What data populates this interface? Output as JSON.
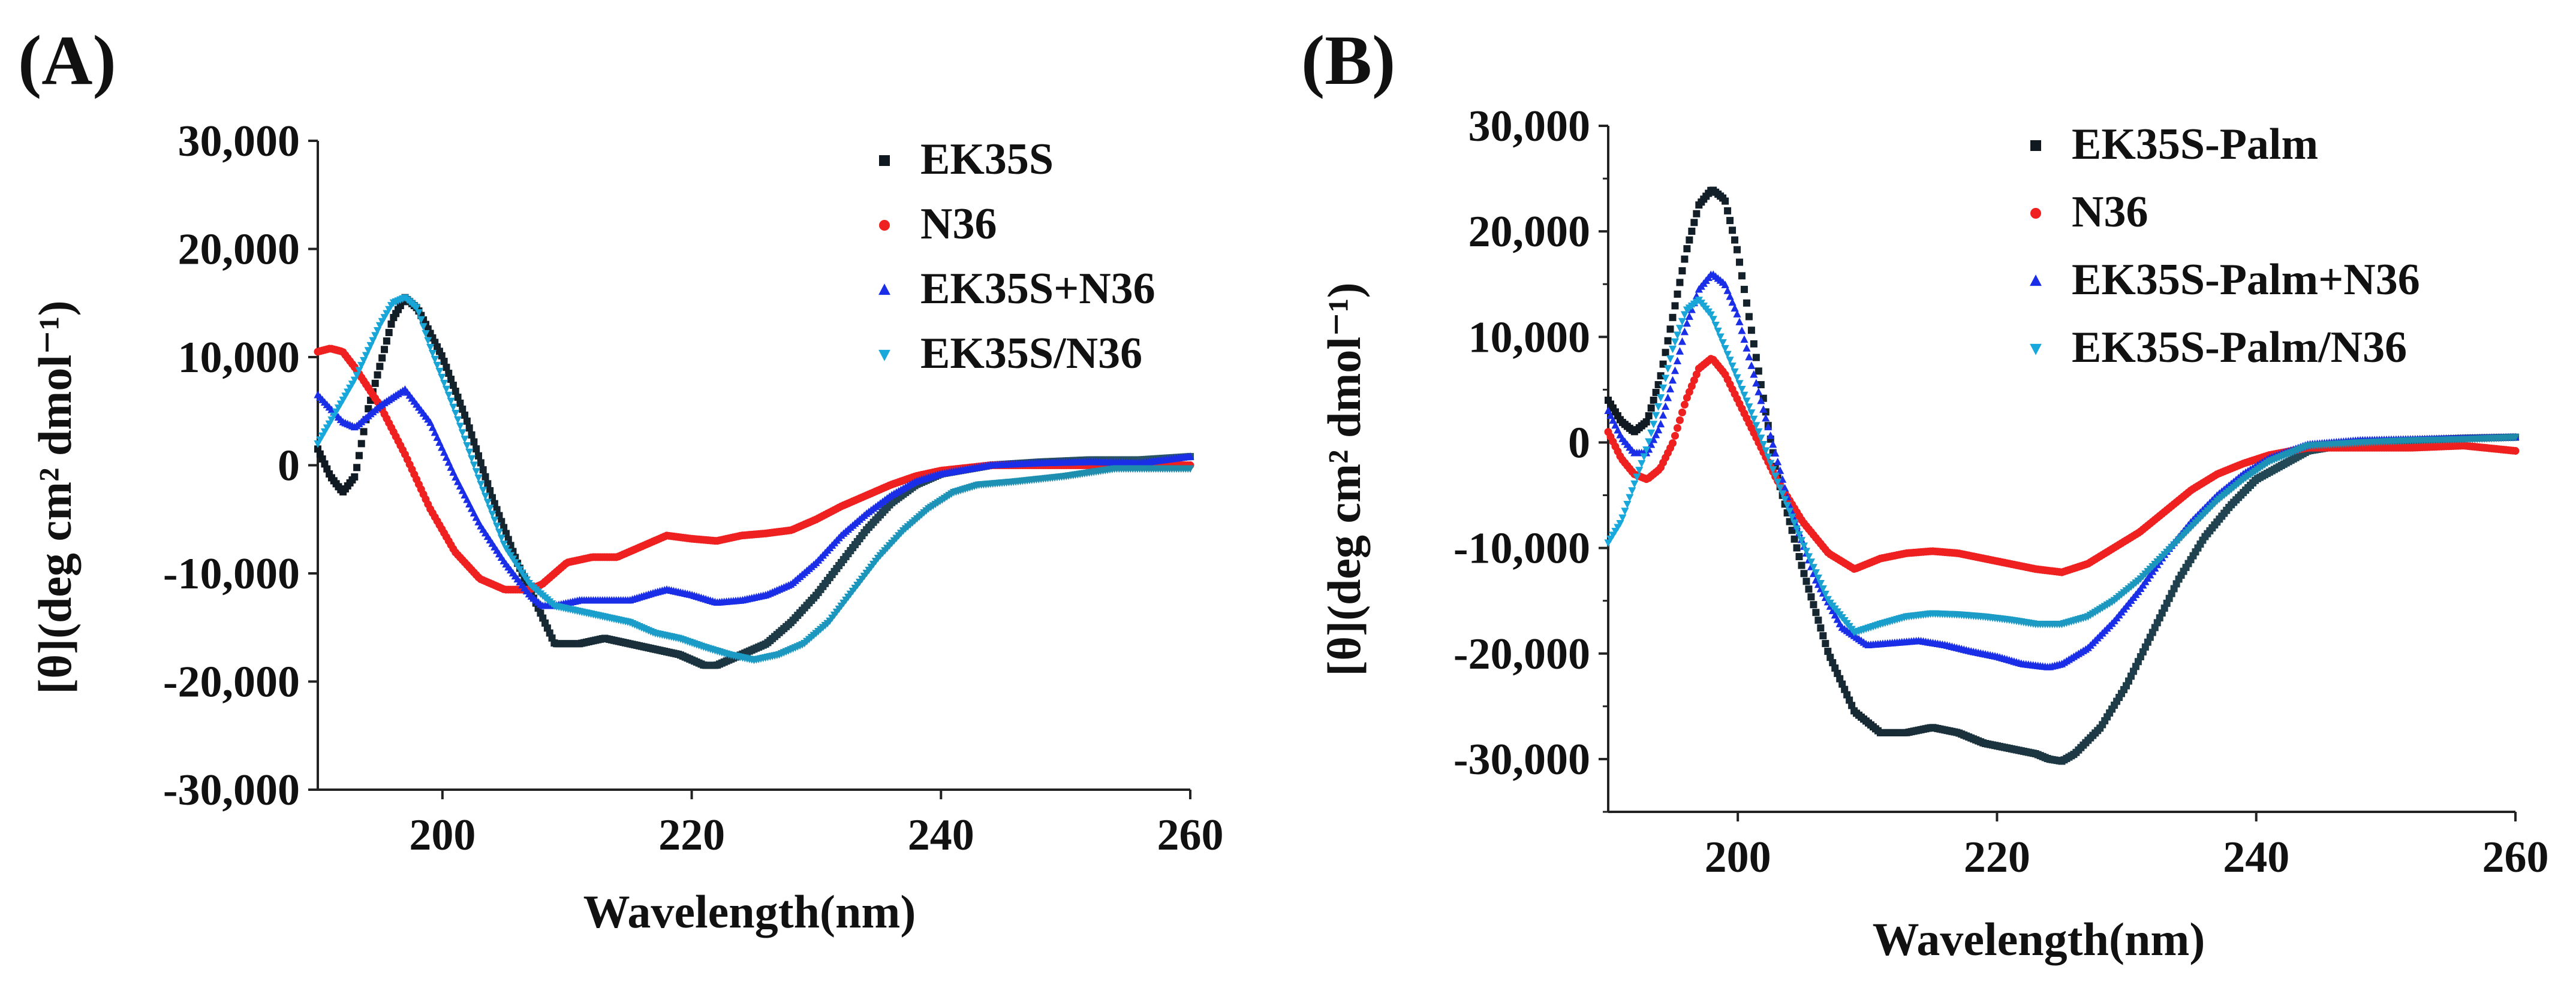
{
  "chart_data": [
    {
      "type": "line",
      "panel_label": "(A)",
      "title": "",
      "xlabel": "Wavelength(nm)",
      "ylabel": "[θ](deg cm² dmol⁻¹)",
      "xlim": [
        190,
        260
      ],
      "ylim": [
        -30000,
        30000
      ],
      "x_ticks": [
        200,
        220,
        240,
        260
      ],
      "x_tick_labels": [
        "200",
        "220",
        "240",
        "260"
      ],
      "y_ticks": [
        30000,
        20000,
        10000,
        0,
        -10000,
        -20000,
        -30000
      ],
      "y_tick_labels": [
        "30,000",
        "20,000",
        "10,000",
        "0",
        "-10,000",
        "-20,000",
        "-30,000"
      ],
      "legend_position": "top-right",
      "series": [
        {
          "name": "EK35S",
          "marker": "square",
          "color_start": "#101820",
          "color_end": "#2a5868",
          "x": [
            190,
            191,
            192,
            193,
            194,
            196,
            197,
            198,
            200,
            202,
            204,
            206,
            208,
            209,
            211,
            213,
            215,
            217,
            219,
            221,
            222,
            224,
            226,
            228,
            230,
            232,
            234,
            236,
            238,
            240,
            244,
            248,
            252,
            256,
            260
          ],
          "y": [
            1500,
            -1000,
            -2500,
            -1000,
            5000,
            13500,
            15500,
            14500,
            10000,
            4000,
            -3000,
            -9000,
            -14000,
            -16500,
            -16500,
            -16000,
            -16500,
            -17000,
            -17500,
            -18500,
            -18500,
            -17500,
            -16500,
            -14500,
            -12000,
            -9000,
            -6000,
            -3500,
            -1800,
            -800,
            0,
            300,
            500,
            500,
            800
          ]
        },
        {
          "name": "N36",
          "marker": "circle",
          "color_start": "#ee2020",
          "color_end": "#ee2020",
          "x": [
            190,
            191,
            192,
            193,
            195,
            197,
            199,
            201,
            203,
            205,
            207,
            208,
            209,
            210,
            212,
            214,
            216,
            218,
            220,
            222,
            224,
            226,
            228,
            230,
            232,
            234,
            236,
            238,
            240,
            244,
            248,
            252,
            256,
            260
          ],
          "y": [
            10500,
            10800,
            10500,
            9000,
            5500,
            1000,
            -4000,
            -8000,
            -10500,
            -11500,
            -11500,
            -11000,
            -10000,
            -9000,
            -8500,
            -8500,
            -7500,
            -6500,
            -6800,
            -7000,
            -6500,
            -6300,
            -6000,
            -5000,
            -3800,
            -2800,
            -1800,
            -1000,
            -500,
            0,
            0,
            0,
            0,
            0
          ]
        },
        {
          "name": "EK35S+N36",
          "marker": "triangle-up",
          "color_start": "#1a2ee8",
          "color_end": "#1a2ee8",
          "x": [
            190,
            192,
            193,
            195,
            197,
            199,
            201,
            203,
            205,
            207,
            208,
            209,
            211,
            213,
            215,
            217,
            218,
            220,
            222,
            224,
            226,
            228,
            230,
            232,
            234,
            236,
            238,
            240,
            244,
            248,
            252,
            256,
            260
          ],
          "y": [
            6500,
            4000,
            3500,
            5500,
            7000,
            4000,
            -1000,
            -5500,
            -9000,
            -12000,
            -13000,
            -13000,
            -12500,
            -12500,
            -12500,
            -11800,
            -11500,
            -12000,
            -12700,
            -12500,
            -12000,
            -11000,
            -9000,
            -6500,
            -4500,
            -2800,
            -1500,
            -800,
            0,
            200,
            300,
            200,
            800
          ]
        },
        {
          "name": "EK35S/N36",
          "marker": "triangle-down",
          "color_start": "#18a8dc",
          "color_end": "#1f8aa8",
          "x": [
            190,
            191,
            193,
            195,
            196,
            197,
            198,
            199,
            201,
            203,
            205,
            207,
            209,
            211,
            213,
            215,
            217,
            219,
            221,
            223,
            225,
            227,
            229,
            231,
            233,
            235,
            237,
            239,
            241,
            243,
            246,
            250,
            254,
            260
          ],
          "y": [
            2000,
            4000,
            8000,
            13000,
            15000,
            15500,
            14500,
            11000,
            5000,
            -1500,
            -7500,
            -11000,
            -13000,
            -13500,
            -14000,
            -14500,
            -15500,
            -16000,
            -16800,
            -17500,
            -18000,
            -17500,
            -16500,
            -14500,
            -11500,
            -8500,
            -6000,
            -4000,
            -2500,
            -1800,
            -1500,
            -1000,
            -300,
            -300
          ]
        }
      ]
    },
    {
      "type": "line",
      "panel_label": "(B)",
      "title": "",
      "xlabel": "Wavelength(nm)",
      "ylabel": "[θ](deg cm² dmol⁻¹)",
      "xlim": [
        190,
        260
      ],
      "ylim": [
        -35000,
        30000
      ],
      "x_ticks": [
        200,
        220,
        240,
        260
      ],
      "x_tick_labels": [
        "200",
        "220",
        "240",
        "260"
      ],
      "y_ticks": [
        30000,
        20000,
        10000,
        0,
        -10000,
        -20000,
        -30000
      ],
      "y_tick_labels": [
        "30,000",
        "20,000",
        "10,000",
        "0",
        "-10,000",
        "-20,000",
        "-30,000"
      ],
      "legend_position": "top-right",
      "series": [
        {
          "name": "EK35S-Palm",
          "marker": "square",
          "color_start": "#101820",
          "color_end": "#2a5868",
          "x": [
            190,
            191,
            192,
            193,
            194,
            195,
            196,
            197,
            198,
            199,
            200,
            201,
            202,
            203,
            205,
            207,
            209,
            211,
            213,
            215,
            217,
            219,
            221,
            223,
            224,
            225,
            226,
            228,
            230,
            232,
            234,
            236,
            238,
            240,
            244,
            248,
            252,
            256,
            260
          ],
          "y": [
            4000,
            2000,
            1000,
            2000,
            6000,
            12000,
            18000,
            22500,
            24000,
            23000,
            18000,
            11000,
            4000,
            -3000,
            -12000,
            -20000,
            -25500,
            -27500,
            -27500,
            -27000,
            -27500,
            -28500,
            -29000,
            -29500,
            -30000,
            -30200,
            -29500,
            -27000,
            -23000,
            -18000,
            -13000,
            -9000,
            -6000,
            -3500,
            -800,
            0,
            200,
            400,
            500
          ]
        },
        {
          "name": "N36",
          "marker": "circle",
          "color_start": "#ee2020",
          "color_end": "#ee2020",
          "x": [
            190,
            191,
            192,
            193,
            194,
            195,
            196,
            197,
            198,
            199,
            201,
            203,
            205,
            207,
            209,
            211,
            213,
            215,
            217,
            219,
            221,
            223,
            225,
            227,
            229,
            231,
            233,
            235,
            237,
            239,
            241,
            244,
            248,
            252,
            256,
            260
          ],
          "y": [
            1000,
            -1500,
            -3000,
            -3500,
            -2500,
            0,
            4000,
            7000,
            8000,
            6500,
            1500,
            -3500,
            -7500,
            -10500,
            -12000,
            -11000,
            -10500,
            -10300,
            -10500,
            -11000,
            -11500,
            -12000,
            -12300,
            -11500,
            -10000,
            -8500,
            -6500,
            -4500,
            -3000,
            -2000,
            -1200,
            -500,
            -500,
            -500,
            -300,
            -800
          ]
        },
        {
          "name": "EK35S-Palm+N36",
          "marker": "triangle-up",
          "color_start": "#1a2ee8",
          "color_end": "#1a2ee8",
          "x": [
            190,
            191,
            192,
            193,
            194,
            195,
            196,
            197,
            198,
            199,
            200,
            202,
            204,
            206,
            208,
            210,
            212,
            214,
            216,
            218,
            220,
            222,
            224,
            225,
            227,
            229,
            231,
            233,
            235,
            237,
            239,
            241,
            244,
            248,
            252,
            256,
            260
          ],
          "y": [
            3000,
            500,
            -1000,
            -1000,
            1500,
            6000,
            11000,
            14500,
            16000,
            15000,
            12000,
            3000,
            -6000,
            -13000,
            -17500,
            -19200,
            -19000,
            -18800,
            -19200,
            -19800,
            -20300,
            -21000,
            -21300,
            -21000,
            -19500,
            -17000,
            -14000,
            -10500,
            -7500,
            -5000,
            -3000,
            -1500,
            -200,
            200,
            300,
            400,
            500
          ]
        },
        {
          "name": "EK35S-Palm/N36",
          "marker": "triangle-down",
          "color_start": "#18a8dc",
          "color_end": "#1f8aa8",
          "x": [
            190,
            191,
            192,
            193,
            194,
            195,
            196,
            197,
            198,
            199,
            201,
            203,
            205,
            207,
            209,
            211,
            213,
            215,
            217,
            219,
            221,
            223,
            225,
            227,
            229,
            231,
            233,
            235,
            237,
            239,
            241,
            244,
            248,
            252,
            256,
            260
          ],
          "y": [
            -9500,
            -7500,
            -4000,
            -500,
            4000,
            9000,
            12500,
            13500,
            12000,
            9000,
            3000,
            -3500,
            -9500,
            -15000,
            -18000,
            -17200,
            -16500,
            -16200,
            -16300,
            -16500,
            -16800,
            -17200,
            -17200,
            -16500,
            -15000,
            -13000,
            -10500,
            -8000,
            -5500,
            -3500,
            -1800,
            -300,
            0,
            200,
            300,
            500
          ]
        }
      ]
    }
  ]
}
